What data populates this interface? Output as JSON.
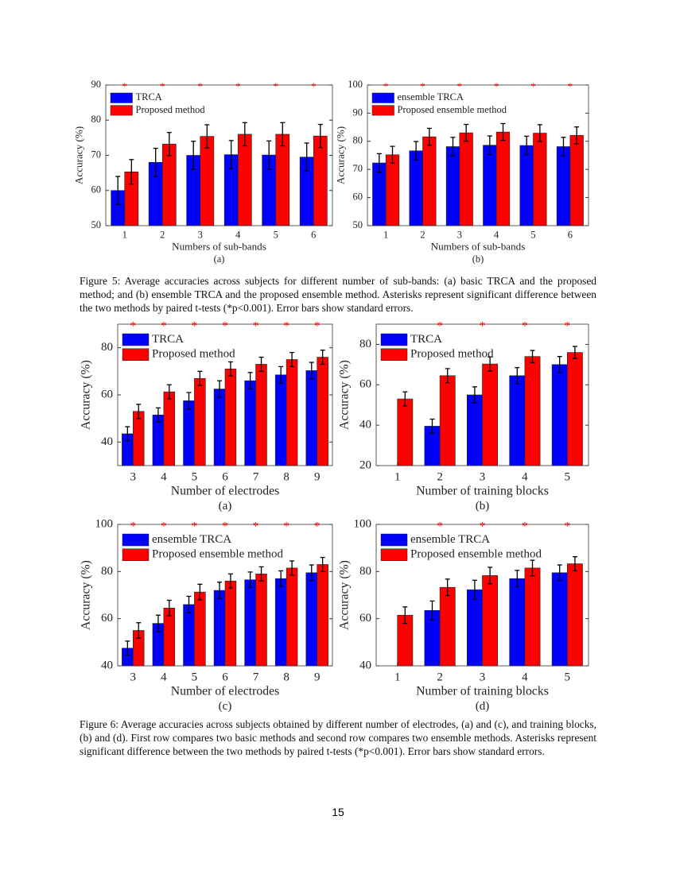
{
  "chart_data": [
    {
      "type": "bar",
      "label": "(a)",
      "xlabel": "Numbers of sub-bands",
      "ylabel": "Accuracy (%)",
      "categories": [
        "1",
        "2",
        "3",
        "4",
        "5",
        "6"
      ],
      "series": [
        {
          "name": "TRCA",
          "color": "#0000ff",
          "values": [
            60,
            68,
            70,
            70.2,
            70.1,
            69.5
          ],
          "errors": [
            4,
            4,
            4,
            4,
            4,
            4
          ]
        },
        {
          "name": "Proposed method",
          "color": "#ff0000",
          "values": [
            65.3,
            73.2,
            75.4,
            76,
            76,
            75.5
          ],
          "errors": [
            3.5,
            3.3,
            3.3,
            3.3,
            3.3,
            3.3
          ]
        }
      ],
      "significance": [
        "*",
        "*",
        "*",
        "*",
        "*",
        "*"
      ],
      "ylim": [
        50,
        90
      ],
      "yticks": [
        50,
        60,
        70,
        80,
        90
      ],
      "legend": "upper left"
    },
    {
      "type": "bar",
      "label": "(b)",
      "xlabel": "Numbers of sub-bands",
      "ylabel": "Accuracy (%)",
      "categories": [
        "1",
        "2",
        "3",
        "4",
        "5",
        "6"
      ],
      "series": [
        {
          "name": "ensemble TRCA",
          "color": "#0000ff",
          "values": [
            72.3,
            76.6,
            78.1,
            78.6,
            78.5,
            78.1
          ],
          "errors": [
            3.3,
            3.3,
            3.3,
            3.3,
            3.3,
            3.3
          ]
        },
        {
          "name": "Proposed ensemble method",
          "color": "#ff0000",
          "values": [
            75.2,
            81.6,
            83,
            83.3,
            82.9,
            82.1
          ],
          "errors": [
            3,
            3,
            3,
            3,
            3,
            3
          ]
        }
      ],
      "significance": [
        "*",
        "*",
        "*",
        "*",
        "*",
        "*"
      ],
      "ylim": [
        50,
        100
      ],
      "yticks": [
        50,
        60,
        70,
        80,
        90,
        100
      ],
      "legend": "upper left"
    },
    {
      "type": "bar",
      "label": "(a)",
      "xlabel": "Number of electrodes",
      "ylabel": "Accuracy (%)",
      "categories": [
        "3",
        "4",
        "5",
        "6",
        "7",
        "8",
        "9"
      ],
      "series": [
        {
          "name": "TRCA",
          "color": "#0000ff",
          "values": [
            43.5,
            51.5,
            57.5,
            62.5,
            66,
            68.5,
            70.3
          ],
          "errors": [
            3,
            3,
            3.5,
            3.5,
            3.5,
            3.5,
            3.5
          ]
        },
        {
          "name": "Proposed method",
          "color": "#ff0000",
          "values": [
            53,
            61.3,
            67,
            71,
            73,
            75,
            76
          ],
          "errors": [
            3,
            3,
            3,
            3,
            3,
            3,
            3
          ]
        }
      ],
      "significance": [
        "*",
        "*",
        "*",
        "*",
        "*",
        "*",
        "*"
      ],
      "ylim": [
        30,
        90
      ],
      "yticks": [
        40,
        60,
        80
      ],
      "legend": "upper left"
    },
    {
      "type": "bar",
      "label": "(b)",
      "xlabel": "Number of training blocks",
      "ylabel": "Accuracy (%)",
      "categories": [
        "1",
        "2",
        "3",
        "4",
        "5"
      ],
      "series": [
        {
          "name": "TRCA",
          "color": "#0000ff",
          "values": [
            null,
            39.5,
            55,
            64.5,
            70
          ],
          "errors": [
            null,
            3.5,
            4,
            4,
            4
          ]
        },
        {
          "name": "Proposed method",
          "color": "#ff0000",
          "values": [
            53,
            64.5,
            70.3,
            74,
            76
          ],
          "errors": [
            3.5,
            3.5,
            3.5,
            3,
            3
          ]
        }
      ],
      "significance": [
        null,
        "*",
        "*",
        "*",
        "*"
      ],
      "ylim": [
        20,
        90
      ],
      "yticks": [
        20,
        40,
        60,
        80
      ],
      "legend": "upper left"
    },
    {
      "type": "bar",
      "label": "(c)",
      "xlabel": "Number of electrodes",
      "ylabel": "Accuracy (%)",
      "categories": [
        "3",
        "4",
        "5",
        "6",
        "7",
        "8",
        "9"
      ],
      "series": [
        {
          "name": "ensemble TRCA",
          "color": "#0000ff",
          "values": [
            47.5,
            58,
            66,
            72,
            76.5,
            77,
            79.5
          ],
          "errors": [
            3,
            3.5,
            3.5,
            3.5,
            3.3,
            3.3,
            3.3
          ]
        },
        {
          "name": "Proposed ensemble method",
          "color": "#ff0000",
          "values": [
            55,
            64.5,
            71.3,
            76,
            79,
            81.5,
            83
          ],
          "errors": [
            3.3,
            3.3,
            3.3,
            3,
            3,
            3,
            3
          ]
        }
      ],
      "significance": [
        "*",
        "*",
        "*",
        "*",
        "*",
        "*",
        "*"
      ],
      "ylim": [
        40,
        100
      ],
      "yticks": [
        40,
        60,
        80,
        100
      ],
      "legend": "upper left"
    },
    {
      "type": "bar",
      "label": "(d)",
      "xlabel": "Number of training blocks",
      "ylabel": "Accuracy (%)",
      "categories": [
        "1",
        "2",
        "3",
        "4",
        "5"
      ],
      "series": [
        {
          "name": "ensemble TRCA",
          "color": "#0000ff",
          "values": [
            null,
            63.5,
            72.3,
            77,
            79.5
          ],
          "errors": [
            null,
            4,
            4,
            3.5,
            3.3
          ]
        },
        {
          "name": "Proposed ensemble method",
          "color": "#ff0000",
          "values": [
            61.5,
            73.3,
            78.3,
            81.5,
            83.3
          ],
          "errors": [
            3.5,
            3.5,
            3.5,
            3.3,
            3
          ]
        }
      ],
      "significance": [
        null,
        "*",
        "*",
        "*",
        "*"
      ],
      "ylim": [
        40,
        100
      ],
      "yticks": [
        40,
        60,
        80,
        100
      ],
      "legend": "upper left"
    }
  ],
  "figure5_caption": "Figure 5: Average accuracies across subjects for different number of sub-bands: (a) basic TRCA and the proposed method; and (b) ensemble TRCA and the proposed ensemble method. Asterisks represent significant difference between the two methods by paired t-tests (*p<0.001). Error bars show standard errors.",
  "figure6_caption": "Figure 6: Average accuracies across subjects obtained by different number of electrodes, (a) and (c), and training blocks, (b) and (d). First row compares two basic methods and second row compares two ensemble methods. Asterisks represent significant difference between the two methods by paired t-tests (*p<0.001). Error bars show standard errors.",
  "page_number": "15"
}
